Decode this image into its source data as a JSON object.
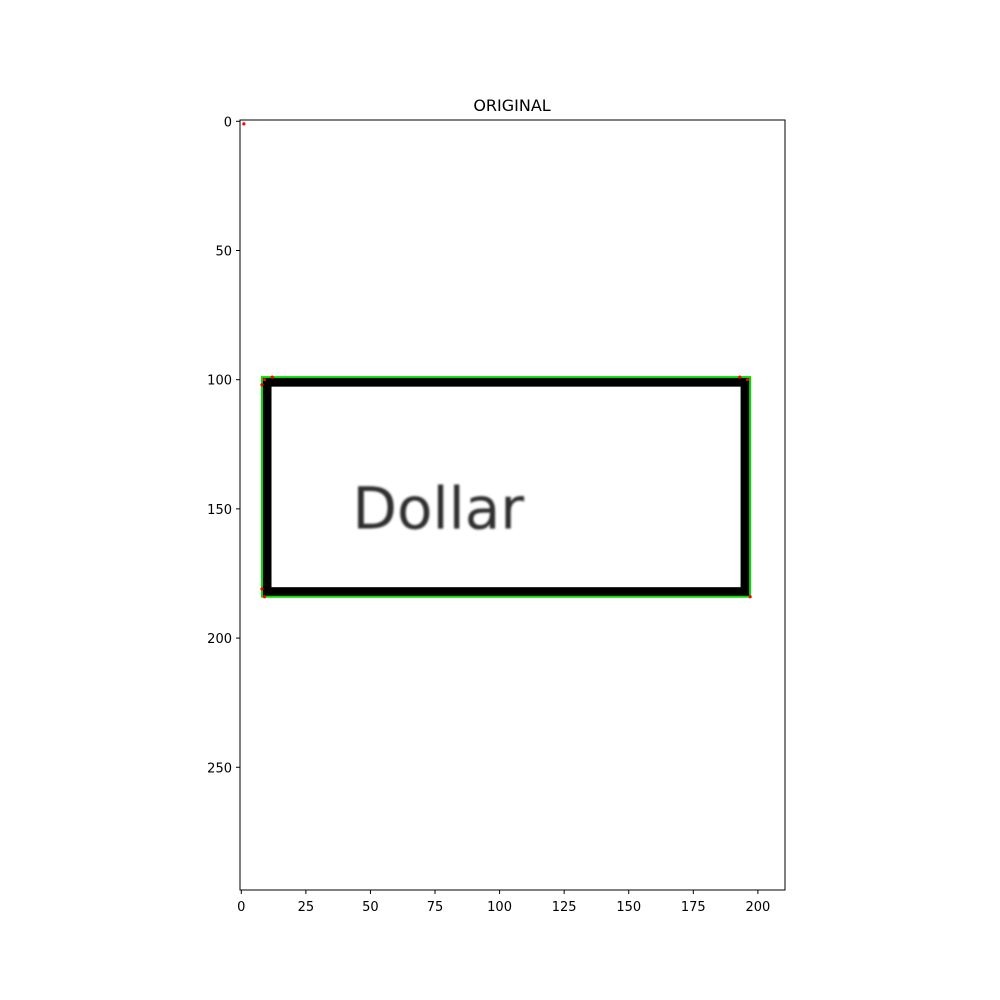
{
  "chart_data": {
    "type": "image",
    "title": "ORIGINAL",
    "xlabel": "",
    "ylabel": "",
    "xlim": [
      -0.5,
      210.5
    ],
    "ylim": [
      297.5,
      -0.5
    ],
    "x_ticks": [
      0,
      25,
      50,
      75,
      100,
      125,
      150,
      175,
      200
    ],
    "y_ticks": [
      0,
      50,
      100,
      150,
      200,
      250
    ],
    "grid": false,
    "image_text": "Dollar",
    "rectangle": {
      "x0": 8,
      "y0": 99,
      "x1": 197,
      "y1": 184
    },
    "contour_color": "#00e000",
    "corner_color": "#ff0000",
    "corner_points": [
      {
        "x": 1,
        "y": 1
      },
      {
        "x": 8,
        "y": 102
      },
      {
        "x": 9,
        "y": 100
      },
      {
        "x": 12,
        "y": 99
      },
      {
        "x": 193,
        "y": 99
      },
      {
        "x": 196,
        "y": 100
      },
      {
        "x": 8,
        "y": 181
      },
      {
        "x": 9,
        "y": 184
      },
      {
        "x": 197,
        "y": 184
      }
    ]
  }
}
